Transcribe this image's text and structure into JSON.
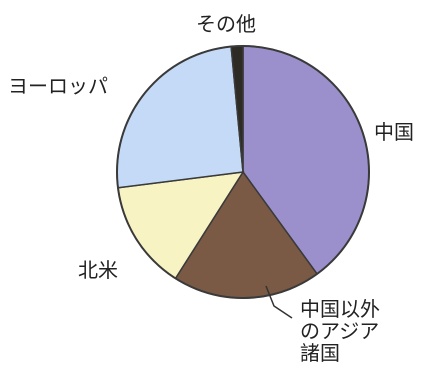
{
  "chart_data": {
    "type": "pie",
    "title": "",
    "slices": [
      {
        "label": "中国",
        "value": 40,
        "color": "#9b90cc"
      },
      {
        "label": "中国以外のアジア諸国",
        "label_lines": [
          "中国以外",
          "のアジア",
          "諸国"
        ],
        "value": 19,
        "color": "#7a5a44"
      },
      {
        "label": "北米",
        "value": 14,
        "color": "#f7f3c2"
      },
      {
        "label": "ヨーロッパ",
        "value": 25.5,
        "color": "#c5daf6"
      },
      {
        "label": "その他",
        "value": 1.5,
        "color": "#2e2a24"
      }
    ]
  }
}
